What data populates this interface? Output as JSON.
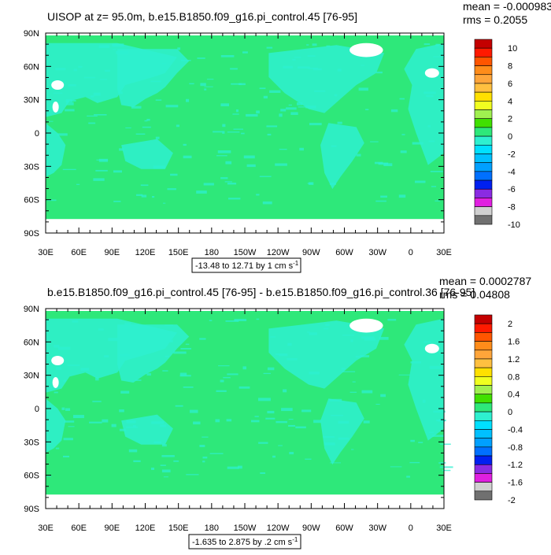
{
  "colors": {
    "ocean_main": "#2ee87a",
    "ocean_diff": "#2ee87a",
    "land": "#2ef0d0",
    "ice": "#ffffff",
    "axis": "#000000",
    "frame": "#000000"
  },
  "chart_data": [
    {
      "type": "heatmap",
      "id": "top",
      "title": "UISOP at z=  95.0m, b.e15.B1850.f09_g16.pi_control.45 [76-95]",
      "mean_text": "mean = -0.0009831",
      "rms_text": "rms = 0.2055",
      "lat_ticks": [
        "90N",
        "60N",
        "30N",
        "0",
        "30S",
        "60S",
        "90S"
      ],
      "lon_ticks": [
        "30E",
        "60E",
        "90E",
        "120E",
        "150E",
        "180",
        "150W",
        "120W",
        "90W",
        "60W",
        "30W",
        "0",
        "30E"
      ],
      "range_text": "-13.48 to 12.71 by 1 cm s",
      "range_sup": "-1",
      "colorbar": {
        "labels": [
          "10",
          "8",
          "6",
          "4",
          "2",
          "0",
          "-2",
          "-4",
          "-6",
          "-8",
          "-10"
        ],
        "colors": [
          "#c40000",
          "#ff1a00",
          "#ff5500",
          "#ff8c1a",
          "#ffa53a",
          "#ffc040",
          "#ffe000",
          "#f0ff20",
          "#a0f050",
          "#40e000",
          "#2ee87a",
          "#2ef0d0",
          "#00e0ff",
          "#00c0ff",
          "#00a0ff",
          "#0070ff",
          "#0020f0",
          "#8a2be2",
          "#e020e0",
          "#d0d0d0",
          "#707070"
        ]
      }
    },
    {
      "type": "heatmap",
      "id": "bottom",
      "title": "b.e15.B1850.f09_g16.pi_control.45 [76-95] - b.e15.B1850.f09_g16.pi_control.36 [76-95]",
      "mean_text": "mean = 0.0002787",
      "rms_text": "rms = 0.04808",
      "lat_ticks": [
        "90N",
        "60N",
        "30N",
        "0",
        "30S",
        "60S",
        "90S"
      ],
      "lon_ticks": [
        "30E",
        "60E",
        "90E",
        "120E",
        "150E",
        "180",
        "150W",
        "120W",
        "90W",
        "60W",
        "30W",
        "0",
        "30E"
      ],
      "range_text": "-1.635 to 2.875 by .2 cm s",
      "range_sup": "-1",
      "colorbar": {
        "labels": [
          "2",
          "1.6",
          "1.2",
          "0.8",
          "0.4",
          "0",
          "-0.4",
          "-0.8",
          "-1.2",
          "-1.6",
          "-2"
        ],
        "colors": [
          "#c40000",
          "#ff1a00",
          "#ff5500",
          "#ff8c1a",
          "#ffa53a",
          "#ffc040",
          "#ffe000",
          "#f0ff20",
          "#a0f050",
          "#40e000",
          "#2ee87a",
          "#2ef0d0",
          "#00e0ff",
          "#00c0ff",
          "#00a0ff",
          "#0070ff",
          "#0020f0",
          "#8a2be2",
          "#e020e0",
          "#d0d0d0",
          "#707070"
        ]
      }
    }
  ]
}
